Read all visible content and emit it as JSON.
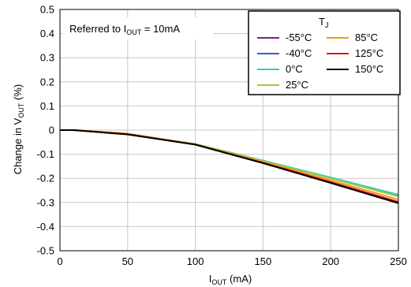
{
  "chart_data": {
    "type": "line",
    "annotation": {
      "prefix": "Referred to I",
      "sub": "OUT",
      "suffix": " = 10mA"
    },
    "xlabel": {
      "main": "I",
      "sub": "OUT",
      "suffix": " (mA)"
    },
    "ylabel": {
      "prefix": "Change in V",
      "sub": "OUT",
      "suffix": " (%)"
    },
    "xlim": [
      0,
      250
    ],
    "ylim": [
      -0.5,
      0.5
    ],
    "xticks": [
      0,
      50,
      100,
      150,
      200,
      250
    ],
    "yticks": [
      0.5,
      0.4,
      0.3,
      0.2,
      0.1,
      0,
      -0.1,
      -0.2,
      -0.3,
      -0.4,
      -0.5
    ],
    "ytick_labels": [
      "0.5",
      "0.4",
      "0.3",
      "0.2",
      "0.1",
      "0",
      "-0.1",
      "-0.2",
      "-0.3",
      "-0.4",
      "-0.5"
    ],
    "xtick_labels": [
      "0",
      "50",
      "100",
      "150",
      "200",
      "250"
    ],
    "grid": true,
    "legend": {
      "title_main": "T",
      "title_sub": "J",
      "placement": "top-right"
    },
    "series": [
      {
        "name": "-55°C",
        "color": "#8B1A8B",
        "x": [
          0,
          10,
          50,
          100,
          150,
          200,
          250
        ],
        "y": [
          0,
          0,
          -0.017,
          -0.058,
          -0.127,
          -0.197,
          -0.27
        ]
      },
      {
        "name": "-40°C",
        "color": "#2E5FD9",
        "x": [
          0,
          10,
          50,
          100,
          150,
          200,
          250
        ],
        "y": [
          0,
          0,
          -0.017,
          -0.058,
          -0.127,
          -0.198,
          -0.272
        ]
      },
      {
        "name": "0°C",
        "color": "#3CC8C8",
        "x": [
          0,
          10,
          50,
          100,
          150,
          200,
          250
        ],
        "y": [
          0,
          0,
          -0.016,
          -0.058,
          -0.126,
          -0.196,
          -0.268
        ]
      },
      {
        "name": "25°C",
        "color": "#9ACD32",
        "x": [
          0,
          10,
          50,
          100,
          150,
          200,
          250
        ],
        "y": [
          0,
          0,
          -0.015,
          -0.058,
          -0.128,
          -0.2,
          -0.275
        ]
      },
      {
        "name": "85°C",
        "color": "#F29A1E",
        "x": [
          0,
          10,
          50,
          100,
          150,
          200,
          250
        ],
        "y": [
          0,
          0,
          -0.014,
          -0.059,
          -0.132,
          -0.208,
          -0.288
        ]
      },
      {
        "name": "125°C",
        "color": "#E01010",
        "x": [
          0,
          10,
          50,
          100,
          150,
          200,
          250
        ],
        "y": [
          0,
          0,
          -0.017,
          -0.06,
          -0.135,
          -0.215,
          -0.297
        ]
      },
      {
        "name": "150°C",
        "color": "#000000",
        "x": [
          0,
          10,
          50,
          100,
          150,
          200,
          250
        ],
        "y": [
          0,
          0,
          -0.018,
          -0.06,
          -0.137,
          -0.219,
          -0.303
        ]
      }
    ]
  }
}
